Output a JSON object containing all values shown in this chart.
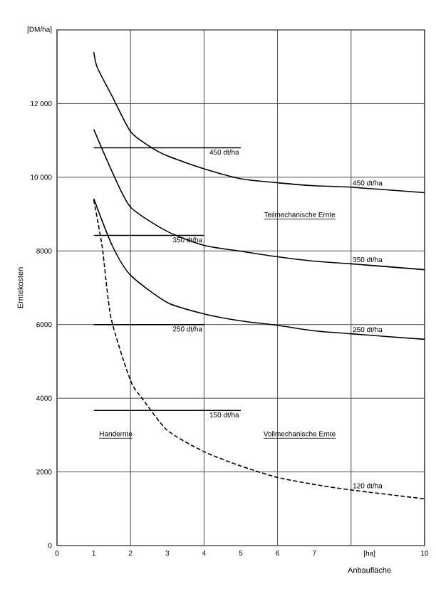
{
  "chart_data": {
    "type": "line",
    "xlabel": "Anbaufläche",
    "ylabel": "Erntekosten",
    "xlim": [
      0,
      10
    ],
    "ylim": [
      0,
      14000
    ],
    "xticks": [
      0,
      1,
      2,
      3,
      4,
      5,
      6,
      7,
      {
        "value": 8,
        "label": null
      },
      {
        "value": 8.5,
        "label": "[ha]"
      },
      10
    ],
    "yticks": [
      0,
      2000,
      4000,
      6000,
      8000,
      {
        "value": 10000,
        "label": "10 000"
      },
      {
        "value": 12000,
        "label": "12 000"
      },
      {
        "value": 14000,
        "label": "[DM/ha]"
      }
    ],
    "grid": true,
    "marker": "none",
    "series": [
      {
        "name": "450 dt/ha",
        "color": "#000000",
        "x": [
          1,
          1.1,
          1.5,
          2,
          2.5,
          3,
          4,
          5,
          6,
          7,
          8,
          10
        ],
        "values": [
          13400,
          12970,
          12200,
          11240,
          10850,
          10580,
          10230,
          9960,
          9850,
          9770,
          9730,
          9580
        ]
      },
      {
        "name": "350 dt/ha",
        "color": "#000000",
        "x": [
          1,
          1.5,
          2,
          3,
          4,
          5,
          6,
          7,
          8,
          10
        ],
        "values": [
          11300,
          10150,
          9190,
          8530,
          8150,
          7990,
          7840,
          7720,
          7650,
          7490
        ]
      },
      {
        "name": "250 dt/ha",
        "color": "#000000",
        "x": [
          1,
          1.5,
          2,
          3,
          4,
          5,
          6,
          7,
          8,
          10
        ],
        "values": [
          9420,
          8150,
          7340,
          6600,
          6290,
          6100,
          5980,
          5830,
          5750,
          5600
        ]
      },
      {
        "name": "120 dt/ha",
        "color": "#000000",
        "line_style": "dashed",
        "x": [
          1,
          1.23,
          1.47,
          2,
          2.33,
          3,
          4,
          5,
          6,
          7,
          8,
          10
        ],
        "values": [
          9380,
          8110,
          6180,
          4480,
          3980,
          3130,
          2550,
          2160,
          1850,
          1660,
          1510,
          1270
        ]
      },
      {
        "name": "450 dt/ha",
        "color": "#000000",
        "x": [
          1,
          5
        ],
        "values": [
          10800,
          10800
        ]
      },
      {
        "name": "350 dt/ha",
        "color": "#000000",
        "x": [
          1,
          4
        ],
        "values": [
          8420,
          8420
        ]
      },
      {
        "name": "250 dt/ha",
        "color": "#000000",
        "x": [
          1,
          4
        ],
        "values": [
          6000,
          6000
        ]
      },
      {
        "name": "150 dt/ha",
        "color": "#000000",
        "x": [
          1,
          5
        ],
        "values": [
          3670,
          3670
        ]
      }
    ],
    "annotations": [
      "Teilmechanische Ernte",
      "Vollmechanische Ernte",
      "Handernte"
    ]
  }
}
